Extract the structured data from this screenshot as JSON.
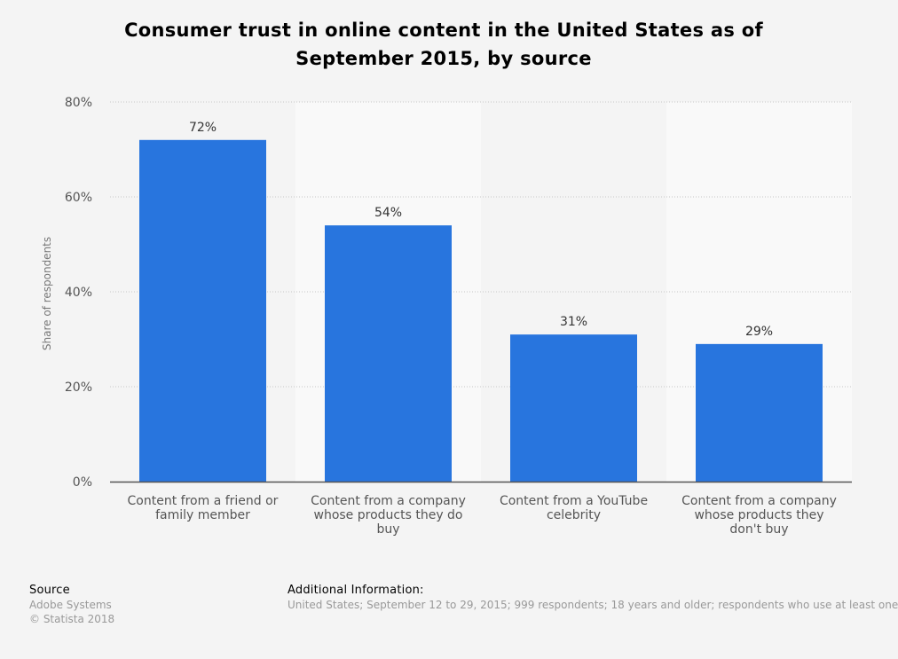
{
  "title": "Consumer trust in online content in the United States as of September 2015, by source",
  "chart_data": {
    "type": "bar",
    "categories": [
      [
        "Content from a friend or",
        "family member"
      ],
      [
        "Content from a company",
        "whose products they do",
        "buy"
      ],
      [
        "Content from a YouTube",
        "celebrity"
      ],
      [
        "Content from a company",
        "whose products they",
        "don't buy"
      ]
    ],
    "values": [
      72,
      54,
      31,
      29
    ],
    "data_labels": [
      "72%",
      "54%",
      "31%",
      "29%"
    ],
    "ylabel": "Share of respondents",
    "ylim": [
      0,
      80
    ],
    "yticks": [
      0,
      20,
      40,
      60,
      80
    ],
    "ytick_labels": [
      "0%",
      "20%",
      "40%",
      "60%",
      "80%"
    ],
    "grid": true,
    "bar_color": "#2875de"
  },
  "footer": {
    "source_heading": "Source",
    "source_lines": [
      "Adobe Systems",
      "© Statista 2018"
    ],
    "additional_heading": "Additional Information:",
    "additional_text": "United States; September 12 to 29, 2015; 999 respondents; 18 years and older; respondents who use at least one"
  }
}
